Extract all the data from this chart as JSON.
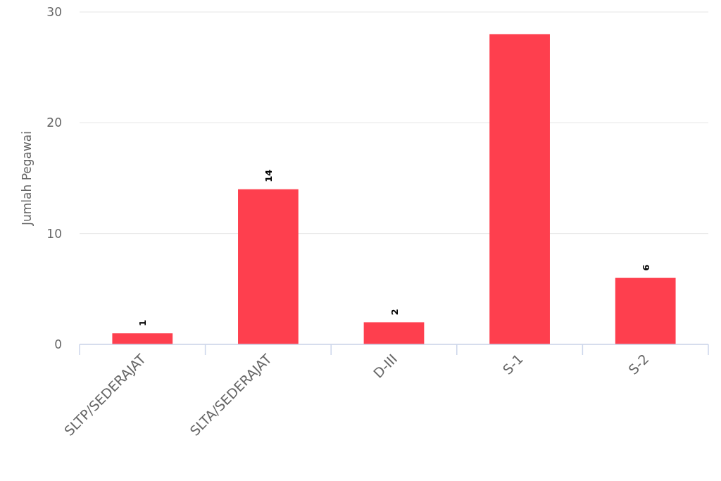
{
  "chart_data": {
    "type": "bar",
    "ylabel": "Jumlah Pegawai",
    "categories": [
      "SLTP/SEDERAJAT",
      "SLTA/SEDERAJAT",
      "D-III",
      "S-1",
      "S-2"
    ],
    "values": [
      1,
      14,
      2,
      28,
      6
    ],
    "value_labels": [
      "1",
      "14",
      "2",
      null,
      "6"
    ],
    "color": "#fe3f4e",
    "ylim": [
      0,
      30
    ],
    "yticks": [
      0,
      10,
      20,
      30
    ],
    "grid": "y"
  }
}
